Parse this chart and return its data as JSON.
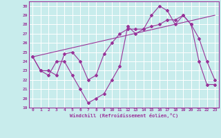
{
  "background_color": "#c8ecec",
  "line_color": "#993399",
  "grid_color": "#ffffff",
  "xlabel": "Windchill (Refroidissement éolien,°C)",
  "xlim": [
    -0.5,
    23.5
  ],
  "ylim": [
    19,
    30.5
  ],
  "yticks": [
    19,
    20,
    21,
    22,
    23,
    24,
    25,
    26,
    27,
    28,
    29,
    30
  ],
  "xticks": [
    0,
    1,
    2,
    3,
    4,
    5,
    6,
    7,
    8,
    9,
    10,
    11,
    12,
    13,
    14,
    15,
    16,
    17,
    18,
    19,
    20,
    21,
    22,
    23
  ],
  "series1_x": [
    0,
    1,
    2,
    3,
    4,
    5,
    6,
    7,
    8,
    9,
    10,
    11,
    12,
    13,
    14,
    15,
    16,
    17,
    18,
    19,
    20,
    21,
    22,
    23
  ],
  "series1_y": [
    24.5,
    23.0,
    22.5,
    24.0,
    24.0,
    22.5,
    21.0,
    19.5,
    20.0,
    20.5,
    22.0,
    23.5,
    27.8,
    27.0,
    27.5,
    29.0,
    30.0,
    29.5,
    28.0,
    29.0,
    28.0,
    24.0,
    21.5,
    21.5
  ],
  "series2_x": [
    0,
    1,
    2,
    3,
    4,
    5,
    6,
    7,
    8,
    9,
    10,
    11,
    12,
    13,
    14,
    15,
    16,
    17,
    18,
    19,
    20,
    21,
    22,
    23
  ],
  "series2_y": [
    24.5,
    23.0,
    23.0,
    22.5,
    24.8,
    25.0,
    24.0,
    22.0,
    22.5,
    24.8,
    26.0,
    27.0,
    27.5,
    27.5,
    27.5,
    27.8,
    28.0,
    28.5,
    28.5,
    29.0,
    28.0,
    26.5,
    24.0,
    22.0
  ],
  "series3_x": [
    0,
    23
  ],
  "series3_y": [
    24.5,
    29.0
  ]
}
